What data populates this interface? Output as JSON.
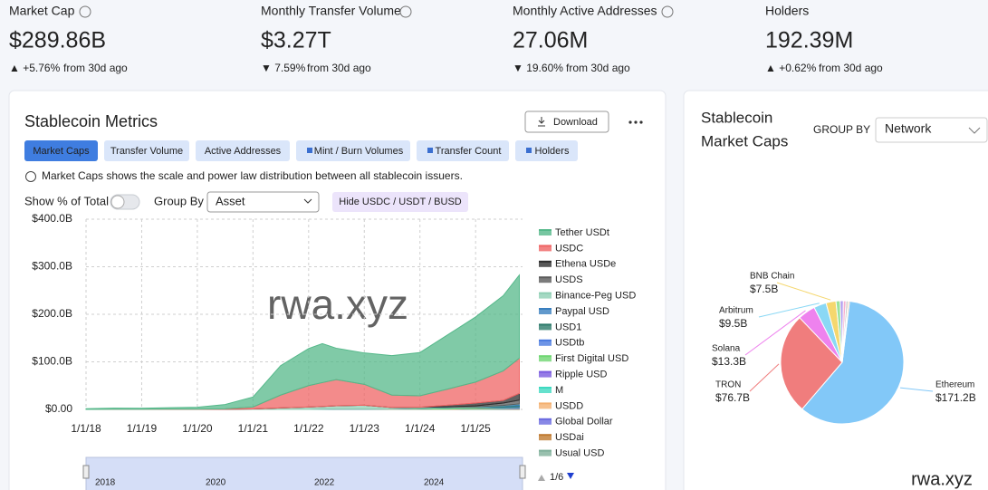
{
  "stats": [
    {
      "label": "Market Cap",
      "value": "$289.86B",
      "change": "▲ +5.76%",
      "suffix": "from 30d ago",
      "dir": "up"
    },
    {
      "label": "Monthly Transfer Volume",
      "value": "$3.27T",
      "change": "▼ 7.59%",
      "suffix": "from 30d ago",
      "dir": "down"
    },
    {
      "label": "Monthly Active Addresses",
      "value": "27.06M",
      "change": "▼ 19.60%",
      "suffix": "from 30d ago",
      "dir": "down"
    },
    {
      "label": "Holders",
      "value": "192.39M",
      "change": "▲ +0.62%",
      "suffix": "from 30d ago",
      "dir": "up"
    }
  ],
  "metrics_panel": {
    "title": "Stablecoin Metrics",
    "download": "Download",
    "tabs": [
      "Market Caps",
      "Transfer Volume",
      "Active Addresses",
      "Mint / Burn Volumes",
      "Transfer Count",
      "Holders"
    ],
    "info": "Market Caps shows the scale and power law distribution between all stablecoin issuers.",
    "show_pct": "Show % of Total",
    "group_by": "Group By",
    "group_by_value": "Asset",
    "hide_button": "Hide USDC / USDT / BUSD",
    "watermark": "rwa.xyz",
    "legend_page": "1/6",
    "navigator_labels": [
      "2018",
      "2020",
      "2022",
      "2024"
    ]
  },
  "market_caps_panel": {
    "title_lines": [
      "Stablecoin",
      "Market Caps"
    ],
    "group_by": "GROUP BY",
    "group_by_value": "Network",
    "watermark": "rwa.xyz"
  },
  "chart_data": [
    {
      "type": "stacked_area",
      "x": [
        "2018-01-01",
        "2018-07-01",
        "2019-01-01",
        "2019-07-01",
        "2020-01-01",
        "2020-07-01",
        "2021-01-01",
        "2021-07-01",
        "2022-01-01",
        "2022-04-01",
        "2022-07-01",
        "2023-01-01",
        "2023-07-01",
        "2024-01-01",
        "2024-07-01",
        "2025-01-01",
        "2025-07-01",
        "2025-10-15"
      ],
      "xlim": [
        "2018-01-01",
        "2025-11-05"
      ],
      "xticks": [
        {
          "value": "2018-01-01",
          "label": "1/1/18"
        },
        {
          "value": "2019-01-01",
          "label": "1/1/19"
        },
        {
          "value": "2020-01-01",
          "label": "1/1/20"
        },
        {
          "value": "2021-01-01",
          "label": "1/1/21"
        },
        {
          "value": "2022-01-01",
          "label": "1/1/22"
        },
        {
          "value": "2023-01-01",
          "label": "1/1/23"
        },
        {
          "value": "2024-01-01",
          "label": "1/1/24"
        },
        {
          "value": "2025-01-01",
          "label": "1/1/25"
        }
      ],
      "ylim": [
        0,
        400
      ],
      "yticks": [
        {
          "value": 0,
          "label": "$0.00"
        },
        {
          "value": 100,
          "label": "$100.0B"
        },
        {
          "value": 200,
          "label": "$200.0B"
        },
        {
          "value": 300,
          "label": "$300.0B"
        },
        {
          "value": 400,
          "label": "$400.0B"
        }
      ],
      "grid": true,
      "series": [
        {
          "name": "Tether USDt",
          "color": "#55b88a",
          "values": [
            1.5,
            2.5,
            2,
            3,
            4,
            9,
            21,
            62,
            78,
            82,
            66,
            66,
            83,
            91,
            114,
            137,
            158,
            175
          ]
        },
        {
          "name": "USDC",
          "color": "#ef6464",
          "values": [
            0,
            0.2,
            0.3,
            0.5,
            0.5,
            1,
            4,
            27,
            45,
            50,
            55,
            44,
            26,
            24,
            34,
            44,
            62,
            74
          ]
        },
        {
          "name": "Ethena USDe",
          "color": "#2e2e2e",
          "values": [
            0,
            0,
            0,
            0,
            0,
            0,
            0,
            0,
            0,
            0,
            0,
            0,
            0,
            0.1,
            3.5,
            5.9,
            5.5,
            14
          ]
        },
        {
          "name": "USDS",
          "color": "#5a5a5a",
          "values": [
            0,
            0,
            0,
            0,
            0,
            0,
            0,
            0,
            0,
            0,
            0,
            0,
            0,
            0,
            0,
            2,
            5,
            8
          ]
        },
        {
          "name": "Binance-Peg USD",
          "color": "#8fcfb4",
          "values": [
            0,
            0,
            0,
            0,
            0,
            0.3,
            1,
            3,
            5,
            6,
            7,
            8,
            3,
            2,
            1,
            1,
            0.5,
            0.5
          ]
        },
        {
          "name": "Paypal USD",
          "color": "#3a7fbf",
          "values": [
            0,
            0,
            0,
            0,
            0,
            0,
            0,
            0,
            0,
            0,
            0,
            0,
            0.05,
            0.3,
            0.6,
            0.5,
            0.9,
            2.5
          ]
        },
        {
          "name": "USD1",
          "color": "#2c7a6a",
          "values": [
            0,
            0,
            0,
            0,
            0,
            0,
            0,
            0,
            0,
            0,
            0,
            0,
            0,
            0,
            0,
            0,
            2.2,
            2.7
          ]
        },
        {
          "name": "USDtb",
          "color": "#4a7be0",
          "values": [
            0,
            0,
            0,
            0,
            0,
            0,
            0,
            0,
            0,
            0,
            0,
            0,
            0,
            0,
            0,
            0.1,
            1.4,
            1.8
          ]
        },
        {
          "name": "First Digital USD",
          "color": "#6fd672",
          "values": [
            0,
            0,
            0,
            0,
            0,
            0,
            0,
            0,
            0,
            0,
            0,
            0,
            0.3,
            1.5,
            2.8,
            2,
            1.3,
            0.7
          ]
        },
        {
          "name": "Ripple USD",
          "color": "#7b5be0",
          "values": [
            0,
            0,
            0,
            0,
            0,
            0,
            0,
            0,
            0,
            0,
            0,
            0,
            0,
            0,
            0,
            0.07,
            0.5,
            0.8
          ]
        },
        {
          "name": "M",
          "color": "#3ed9c0",
          "values": [
            0,
            0,
            0,
            0,
            0,
            0,
            0,
            0,
            0,
            0,
            0,
            0,
            0,
            0,
            0,
            0,
            0.1,
            0.3
          ]
        },
        {
          "name": "USDD",
          "color": "#f4b070",
          "values": [
            0,
            0,
            0,
            0,
            0,
            0,
            0,
            0,
            0,
            0.3,
            0.7,
            0.7,
            0.7,
            0.7,
            0.7,
            0.5,
            0.5,
            0.5
          ]
        },
        {
          "name": "Global Dollar",
          "color": "#6a6ae0",
          "values": [
            0,
            0,
            0,
            0,
            0,
            0,
            0,
            0,
            0,
            0,
            0,
            0,
            0,
            0,
            0,
            0.1,
            0.4,
            0.6
          ]
        },
        {
          "name": "USDai",
          "color": "#c07a30",
          "values": [
            0,
            0,
            0,
            0,
            0,
            0,
            0,
            0,
            0,
            0,
            0,
            0,
            0,
            0,
            0,
            0,
            0,
            0.6
          ]
        },
        {
          "name": "Usual USD",
          "color": "#7fb09a",
          "values": [
            0,
            0,
            0,
            0,
            0,
            0,
            0,
            0,
            0,
            0,
            0,
            0,
            0,
            0,
            0.1,
            1.2,
            0.6,
            0.5
          ]
        }
      ]
    },
    {
      "type": "pie",
      "categories": [
        "Ethereum",
        "TRON",
        "Solana",
        "Arbitrum",
        "BNB Chain",
        null,
        null,
        null,
        null,
        null
      ],
      "values": [
        171.2,
        76.7,
        13.3,
        9.5,
        7.5,
        3.2,
        2.4,
        2.0,
        1.6,
        1.0
      ],
      "value_labels": [
        "$171.2B",
        "$76.7B",
        "$13.3B",
        "$9.5B",
        "$7.5B",
        null,
        null,
        null,
        null,
        null
      ],
      "colors": [
        "#82c8f8",
        "#f07d7d",
        "#ee82ee",
        "#8ad8f5",
        "#f5d76e",
        "#9be39b",
        "#b19cf0",
        "#f5b0d0",
        "#c8c8c8",
        "#f4a460"
      ]
    }
  ]
}
